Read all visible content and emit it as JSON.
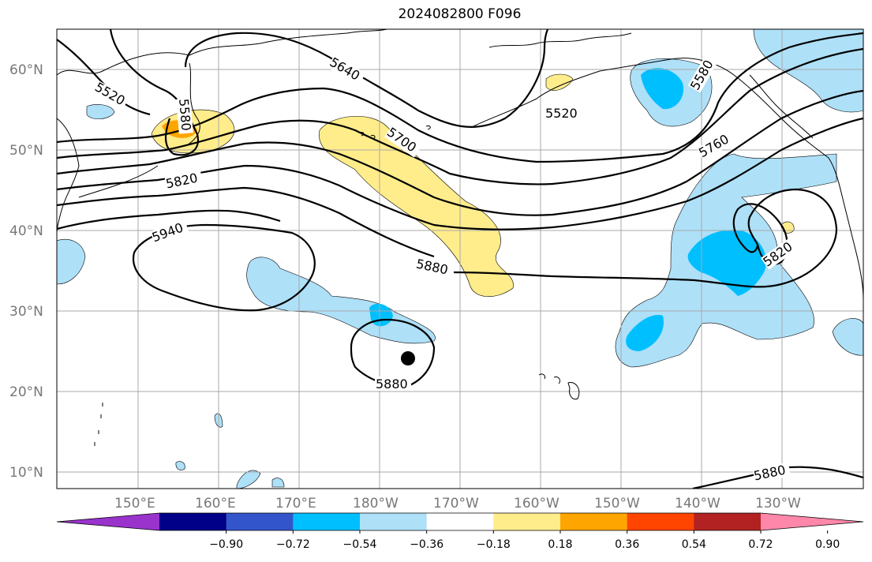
{
  "title": "2024082800 F096",
  "lat_ticks": [
    "60°N",
    "50°N",
    "40°N",
    "30°N",
    "20°N",
    "10°N"
  ],
  "lon_ticks": [
    "150°E",
    "160°E",
    "170°E",
    "180°W",
    "170°W",
    "160°W",
    "150°W",
    "140°W",
    "130°W"
  ],
  "contour_labels": [
    "5520",
    "5580",
    "5640",
    "5520",
    "5580",
    "5700",
    "5760",
    "5820",
    "5940",
    "5880",
    "5820",
    "5880",
    "5880"
  ],
  "colorbar": {
    "colors": [
      "#9a33cc",
      "#000088",
      "#3355cc",
      "#00bfff",
      "#aee0f8",
      "#ffffff",
      "#ffec8b",
      "#ffa500",
      "#ff4500",
      "#b22222",
      "#ff88aa"
    ],
    "tick_labels": [
      "−0.90",
      "−0.72",
      "−0.54",
      "−0.36",
      "−0.18",
      "0.18",
      "0.36",
      "0.54",
      "0.72",
      "0.90"
    ]
  },
  "shading_colors": {
    "light_blue": "#aee0f8",
    "blue": "#00bfff",
    "light_yellow": "#ffec8b",
    "orange": "#ffa500"
  }
}
